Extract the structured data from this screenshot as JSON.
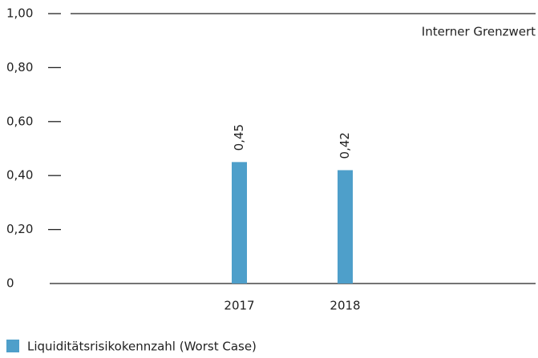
{
  "chart_data": {
    "type": "bar",
    "categories": [
      "2017",
      "2018"
    ],
    "series": [
      {
        "name": "Liquiditätsrisikokennzahl (Worst Case)",
        "color": "#4e9fca",
        "values": [
          0.45,
          0.42
        ],
        "value_labels": [
          "0,45",
          "0,42"
        ]
      }
    ],
    "ylim": [
      0,
      1
    ],
    "yticks": [
      0,
      {
        "value": 0.2,
        "label": "0,20"
      },
      {
        "value": 0.4,
        "label": "0,40"
      },
      {
        "value": 0.6,
        "label": "0,60"
      },
      {
        "value": 0.8,
        "label": "0,80"
      },
      {
        "value": 1,
        "label": "1,00"
      }
    ],
    "threshold": {
      "value": 1,
      "label": "Interner Grenzwert"
    }
  }
}
